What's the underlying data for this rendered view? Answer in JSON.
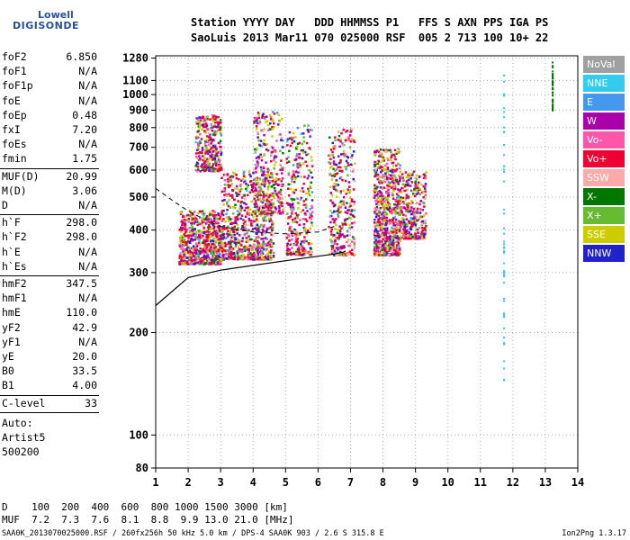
{
  "logo": {
    "line1": "Lowell",
    "line2": "DIGISONDE"
  },
  "header": {
    "line1": "Station YYYY DAY   DDD HHMMSS P1   FFS S AXN PPS IGA PS",
    "line2": "SaoLuis 2013 Mar11 070 025000 RSF  005 2 713 100 10+ 22"
  },
  "params": {
    "group1": [
      {
        "name": "foF2",
        "value": "6.850"
      },
      {
        "name": "foF1",
        "value": "N/A"
      },
      {
        "name": "foF1p",
        "value": "N/A"
      },
      {
        "name": "foE",
        "value": "N/A"
      },
      {
        "name": "foEp",
        "value": "0.48"
      },
      {
        "name": "fxI",
        "value": "7.20"
      },
      {
        "name": "foEs",
        "value": "N/A"
      },
      {
        "name": "fmin",
        "value": "1.75"
      }
    ],
    "group2": [
      {
        "name": "MUF(D)",
        "value": "20.99"
      },
      {
        "name": "M(D)",
        "value": "3.06"
      },
      {
        "name": "D",
        "value": "N/A"
      }
    ],
    "group3": [
      {
        "name": "h`F",
        "value": "298.0"
      },
      {
        "name": "h`F2",
        "value": "298.0"
      },
      {
        "name": "h`E",
        "value": "N/A"
      },
      {
        "name": "h`Es",
        "value": "N/A"
      }
    ],
    "group4": [
      {
        "name": "hmF2",
        "value": "347.5"
      },
      {
        "name": "hmF1",
        "value": "N/A"
      },
      {
        "name": "hmE",
        "value": "110.0"
      },
      {
        "name": "yF2",
        "value": "42.9"
      },
      {
        "name": "yF1",
        "value": "N/A"
      },
      {
        "name": "yE",
        "value": "20.0"
      },
      {
        "name": "B0",
        "value": "33.5"
      },
      {
        "name": "B1",
        "value": "4.00"
      }
    ],
    "group5": [
      {
        "name": "C-level",
        "value": "33"
      }
    ],
    "auto": [
      "Auto:",
      "Artist5",
      "500200"
    ]
  },
  "legend": [
    {
      "label": "NoVal",
      "color": "#a0a0a0"
    },
    {
      "label": "NNE",
      "color": "#33ccee"
    },
    {
      "label": "E",
      "color": "#4499ee"
    },
    {
      "label": "W",
      "color": "#aa00aa"
    },
    {
      "label": "Vo-",
      "color": "#ff55aa"
    },
    {
      "label": "Vo+",
      "color": "#ee0033"
    },
    {
      "label": "SSW",
      "color": "#ffaaaa"
    },
    {
      "label": "X-",
      "color": "#007700"
    },
    {
      "label": "X+",
      "color": "#66bb33"
    },
    {
      "label": "SSE",
      "color": "#cccc00"
    },
    {
      "label": "NNW",
      "color": "#2222cc"
    }
  ],
  "footer": {
    "line1": "D    100  200  400  600  800 1000 1500 3000 [km]",
    "line2": "MUF  7.2  7.3  7.6  8.1  8.8  9.9 13.0 21.0 [MHz]",
    "line3": "SAA0K_2013070025000.RSF / 260fx256h 50 kHz 5.0 km / DPS-4 SAA0K 903 / 2.6 S 315.8 E",
    "version": "Ion2Png 1.3.17"
  },
  "chart_data": {
    "type": "scatter",
    "title": "",
    "xlabel": "",
    "ylabel": "",
    "xlim": [
      1,
      14
    ],
    "ylim": [
      80,
      1300
    ],
    "y_scale": "log",
    "x_ticks": [
      "1",
      "2",
      "3",
      "4",
      "5",
      "6",
      "7",
      "8",
      "9",
      "10",
      "11",
      "12",
      "13",
      "14"
    ],
    "y_ticks": [
      "80",
      "100",
      "200",
      "300",
      "400",
      "500",
      "600",
      "700",
      "800",
      "900",
      "1000",
      "1100",
      "1280"
    ],
    "grid": true,
    "legend_position": "right",
    "clusters": [
      {
        "x": [
          1.7,
          3.0
        ],
        "y": [
          320,
          460
        ],
        "density": "high"
      },
      {
        "x": [
          2.2,
          3.0
        ],
        "y": [
          600,
          880
        ],
        "density": "medium"
      },
      {
        "x": [
          3.0,
          4.6
        ],
        "y": [
          330,
          600
        ],
        "density": "high"
      },
      {
        "x": [
          4.0,
          4.9
        ],
        "y": [
          450,
          900
        ],
        "density": "medium"
      },
      {
        "x": [
          5.0,
          5.8
        ],
        "y": [
          340,
          830
        ],
        "density": "medium"
      },
      {
        "x": [
          6.3,
          7.1
        ],
        "y": [
          340,
          800
        ],
        "density": "medium"
      },
      {
        "x": [
          7.7,
          8.5
        ],
        "y": [
          340,
          700
        ],
        "density": "high"
      },
      {
        "x": [
          8.5,
          9.3
        ],
        "y": [
          380,
          600
        ],
        "density": "medium"
      }
    ],
    "vertical_traces": [
      {
        "x": 11.7,
        "y": [
          140,
          1280
        ],
        "color": "#33ccee"
      },
      {
        "x": 13.2,
        "y": [
          900,
          1280
        ],
        "color": "#007700"
      }
    ],
    "profile_curve": {
      "f": [
        1.0,
        2.0,
        3.0,
        4.0,
        5.0,
        6.0,
        6.5,
        6.8,
        6.85
      ],
      "h": [
        240,
        290,
        305,
        315,
        325,
        335,
        340,
        345,
        347.5
      ]
    },
    "top_curve": {
      "f": [
        1.0,
        1.5,
        2.0,
        2.5,
        3.0,
        4.0,
        5.0,
        6.0,
        6.5
      ],
      "h": [
        530,
        490,
        455,
        430,
        410,
        395,
        390,
        395,
        410
      ]
    }
  }
}
